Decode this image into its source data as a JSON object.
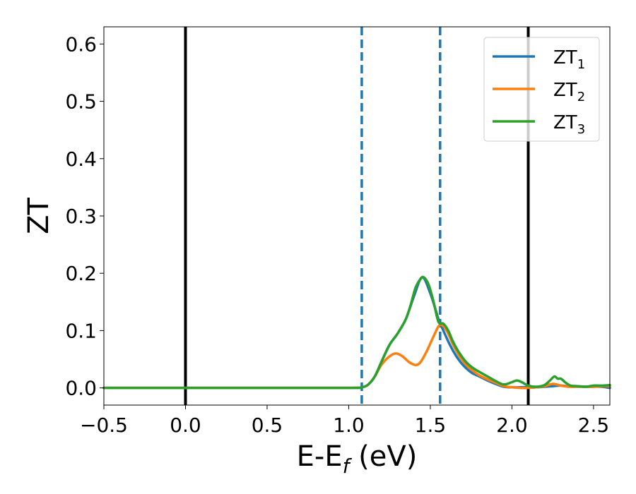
{
  "chart_data": {
    "type": "line",
    "xlabel": "E-E",
    "xlabel_sub": "f",
    "xlabel_unit": " (eV)",
    "ylabel": "ZT",
    "xlim": [
      -0.5,
      2.6
    ],
    "ylim": [
      -0.03,
      0.63
    ],
    "xticks": [
      -0.5,
      0.0,
      0.5,
      1.0,
      1.5,
      2.0,
      2.5
    ],
    "xtick_labels": [
      "−0.5",
      "0.0",
      "0.5",
      "1.0",
      "1.5",
      "2.0",
      "2.5"
    ],
    "yticks": [
      0.0,
      0.1,
      0.2,
      0.3,
      0.4,
      0.5,
      0.6
    ],
    "ytick_labels": [
      "0.0",
      "0.1",
      "0.2",
      "0.3",
      "0.4",
      "0.5",
      "0.6"
    ],
    "grid": false,
    "legend_position": "top-right",
    "vlines": [
      {
        "x": 0.0,
        "color": "#000000",
        "style": "solid"
      },
      {
        "x": 2.1,
        "color": "#000000",
        "style": "solid"
      },
      {
        "x": 1.08,
        "color": "#1f77b4",
        "style": "dashed"
      },
      {
        "x": 1.56,
        "color": "#1f77b4",
        "style": "dashed"
      }
    ],
    "series": [
      {
        "name": "ZT",
        "name_sub": "1",
        "color": "#1f77b4",
        "x": [
          -0.5,
          0.0,
          0.5,
          1.0,
          1.08,
          1.12,
          1.16,
          1.2,
          1.25,
          1.3,
          1.35,
          1.4,
          1.45,
          1.5,
          1.55,
          1.58,
          1.62,
          1.66,
          1.7,
          1.75,
          1.8,
          1.85,
          1.9,
          1.95,
          2.0,
          2.05,
          2.1,
          2.15,
          2.2,
          2.25,
          2.3,
          2.35,
          2.4,
          2.45,
          2.5,
          2.55,
          2.6
        ],
        "y": [
          0.0,
          0.0,
          0.0,
          0.0,
          0.001,
          0.006,
          0.02,
          0.045,
          0.075,
          0.095,
          0.12,
          0.16,
          0.193,
          0.165,
          0.12,
          0.1,
          0.075,
          0.055,
          0.04,
          0.027,
          0.02,
          0.013,
          0.007,
          0.002,
          0.001,
          0.001,
          0.001,
          0.001,
          0.002,
          0.003,
          0.004,
          0.003,
          0.003,
          0.002,
          0.002,
          0.002,
          0.0
        ]
      },
      {
        "name": "ZT",
        "name_sub": "2",
        "color": "#ff7f0e",
        "x": [
          -0.5,
          0.0,
          0.5,
          1.0,
          1.08,
          1.12,
          1.16,
          1.2,
          1.25,
          1.29,
          1.33,
          1.37,
          1.41,
          1.44,
          1.48,
          1.52,
          1.56,
          1.6,
          1.64,
          1.68,
          1.72,
          1.76,
          1.8,
          1.85,
          1.9,
          1.95,
          2.0,
          2.05,
          2.1,
          2.15,
          2.2,
          2.25,
          2.3,
          2.35,
          2.4,
          2.45,
          2.5,
          2.55,
          2.6
        ],
        "y": [
          0.0,
          0.0,
          0.0,
          0.0,
          0.001,
          0.006,
          0.02,
          0.04,
          0.055,
          0.06,
          0.055,
          0.045,
          0.04,
          0.045,
          0.065,
          0.09,
          0.11,
          0.1,
          0.075,
          0.055,
          0.04,
          0.03,
          0.022,
          0.015,
          0.009,
          0.003,
          0.001,
          0.0,
          0.0,
          0.001,
          0.003,
          0.007,
          0.004,
          0.002,
          0.002,
          0.002,
          0.002,
          0.003,
          0.003
        ]
      },
      {
        "name": "ZT",
        "name_sub": "3",
        "color": "#2ca02c",
        "x": [
          -0.5,
          0.0,
          0.5,
          1.0,
          1.08,
          1.12,
          1.16,
          1.2,
          1.25,
          1.3,
          1.35,
          1.38,
          1.41,
          1.44,
          1.46,
          1.49,
          1.52,
          1.55,
          1.58,
          1.61,
          1.64,
          1.68,
          1.72,
          1.76,
          1.8,
          1.85,
          1.9,
          1.95,
          2.0,
          2.03,
          2.06,
          2.1,
          2.15,
          2.2,
          2.23,
          2.26,
          2.28,
          2.3,
          2.33,
          2.36,
          2.4,
          2.45,
          2.5,
          2.55,
          2.6
        ],
        "y": [
          0.0,
          0.0,
          0.0,
          0.0,
          0.001,
          0.006,
          0.02,
          0.045,
          0.075,
          0.095,
          0.12,
          0.145,
          0.175,
          0.19,
          0.193,
          0.18,
          0.15,
          0.115,
          0.112,
          0.1,
          0.08,
          0.06,
          0.045,
          0.035,
          0.028,
          0.02,
          0.012,
          0.006,
          0.01,
          0.013,
          0.01,
          0.004,
          0.002,
          0.005,
          0.012,
          0.02,
          0.016,
          0.016,
          0.009,
          0.004,
          0.003,
          0.002,
          0.004,
          0.004,
          0.005
        ]
      }
    ]
  }
}
